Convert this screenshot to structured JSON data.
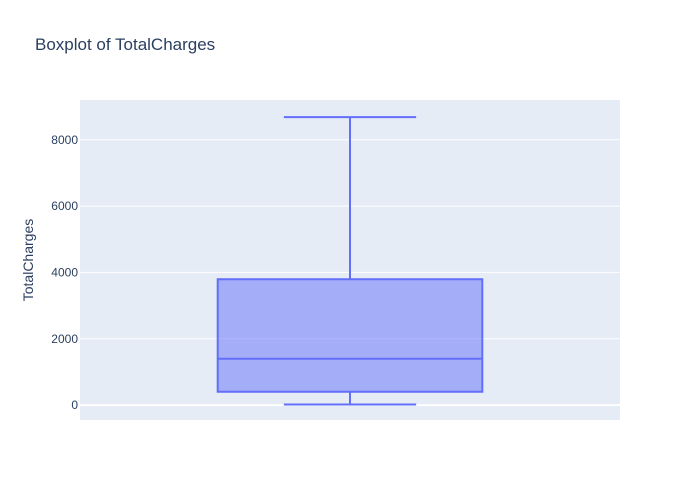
{
  "chart_data": {
    "type": "box",
    "title": "Boxplot of TotalCharges",
    "ylabel": "TotalCharges",
    "xlabel": "",
    "ylim": [
      -450,
      9200
    ],
    "yticks": [
      0,
      2000,
      4000,
      6000,
      8000
    ],
    "ytick_labels": [
      "0",
      "2000",
      "4000",
      "6000",
      "8000"
    ],
    "grid": true,
    "box": {
      "min": 18.8,
      "q1": 401.4,
      "median": 1397.5,
      "q3": 3794.7,
      "max": 8684.8
    },
    "colors": {
      "plot_bg": "#e5ecf6",
      "grid": "#ffffff",
      "box_line": "#636efa",
      "box_fill": "rgba(99,110,250,0.5)",
      "text": "#2a3f5f"
    }
  }
}
